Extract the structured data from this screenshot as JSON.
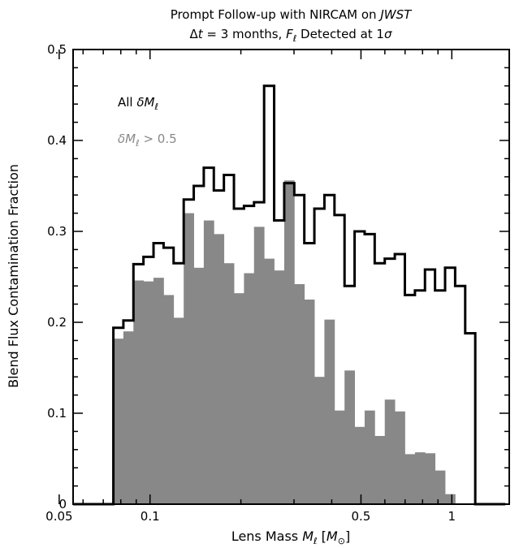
{
  "chart_data": {
    "type": "histogram",
    "title": "Prompt Follow-up with NIRCAM on JWST",
    "subtitle": "Δt = 3 months, F_ℓ Detected at 1σ",
    "xlabel": "Lens Mass M_ℓ [M_⊙]",
    "ylabel": "Blend Flux Contamination Fraction",
    "x_scale": "log",
    "xlim": [
      0.0556,
      1.55
    ],
    "ylim": [
      0,
      0.5
    ],
    "x_ticks": [
      {
        "value": 0.05,
        "label": "0.05"
      },
      {
        "value": 0.1,
        "label": "0.1"
      },
      {
        "value": 0.5,
        "label": "0.5"
      },
      {
        "value": 1,
        "label": "1"
      }
    ],
    "y_ticks": [
      {
        "value": 0,
        "label": "0"
      },
      {
        "value": 0.1,
        "label": "0.1"
      },
      {
        "value": 0.2,
        "label": "0.2"
      },
      {
        "value": 0.3,
        "label": "0.3"
      },
      {
        "value": 0.4,
        "label": "0.4"
      },
      {
        "value": 0.5,
        "label": "0.5"
      }
    ],
    "bin_edges": [
      0.0556,
      0.0601,
      0.0648,
      0.07,
      0.0756,
      0.0816,
      0.0881,
      0.0951,
      0.1027,
      0.1109,
      0.1197,
      0.1293,
      0.1396,
      0.1507,
      0.1627,
      0.1757,
      0.1897,
      0.2048,
      0.2211,
      0.2388,
      0.2578,
      0.2784,
      0.3006,
      0.3245,
      0.3504,
      0.3783,
      0.4085,
      0.4411,
      0.4763,
      0.5142,
      0.5552,
      0.5995,
      0.6473,
      0.6989,
      0.7547,
      0.8148,
      0.8798,
      0.9499,
      1.0257,
      1.1075,
      1.1958,
      1.2911,
      1.3941,
      1.5052
    ],
    "series": [
      {
        "name": "All δM_ℓ",
        "style": "step",
        "color": "#000000",
        "values": [
          0,
          0,
          0,
          0,
          0.194,
          0.202,
          0.264,
          0.272,
          0.287,
          0.282,
          0.265,
          0.335,
          0.35,
          0.37,
          0.345,
          0.362,
          0.325,
          0.328,
          0.332,
          0.46,
          0.312,
          0.353,
          0.34,
          0.287,
          0.325,
          0.34,
          0.318,
          0.24,
          0.3,
          0.297,
          0.265,
          0.27,
          0.275,
          0.23,
          0.235,
          0.258,
          0.235,
          0.26,
          0.24,
          0.188,
          0,
          0,
          0
        ]
      },
      {
        "name": "δM_ℓ > 0.5",
        "style": "filled",
        "color": "#888888",
        "values": [
          0,
          0,
          0,
          0,
          0.182,
          0.19,
          0.246,
          0.245,
          0.249,
          0.23,
          0.205,
          0.32,
          0.26,
          0.312,
          0.297,
          0.265,
          0.232,
          0.254,
          0.305,
          0.27,
          0.257,
          0.356,
          0.242,
          0.225,
          0.14,
          0.203,
          0.103,
          0.147,
          0.085,
          0.103,
          0.075,
          0.115,
          0.102,
          0.055,
          0.057,
          0.056,
          0.037,
          0.011,
          0,
          0,
          0,
          0,
          0
        ]
      }
    ],
    "legend": {
      "placement": "top-left",
      "entries": [
        {
          "label_parts": [
            "All ",
            "δM",
            "ℓ"
          ],
          "color": "#000000"
        },
        {
          "label_parts": [
            "δM",
            "ℓ",
            " > 0.5"
          ],
          "color": "#888888"
        }
      ]
    }
  }
}
